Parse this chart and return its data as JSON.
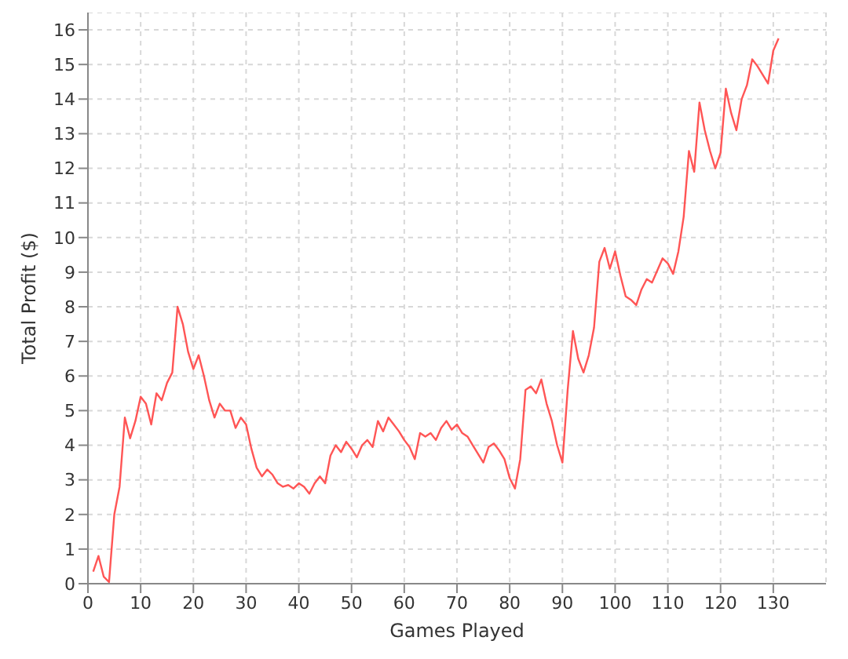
{
  "chart_data": {
    "type": "line",
    "xlabel": "Games Played",
    "ylabel": "Total Profit ($)",
    "xlim": [
      0,
      140
    ],
    "xticks": [
      0,
      10,
      20,
      30,
      40,
      50,
      60,
      70,
      80,
      90,
      100,
      110,
      120,
      130
    ],
    "ylim": [
      0,
      16.5
    ],
    "yticks": [
      0,
      1,
      2,
      3,
      4,
      5,
      6,
      7,
      8,
      9,
      10,
      11,
      12,
      13,
      14,
      15,
      16
    ],
    "grid": true,
    "legend": false,
    "marker": "none",
    "line_style": "solid",
    "x": [
      1,
      2,
      3,
      4,
      5,
      6,
      7,
      8,
      9,
      10,
      11,
      12,
      13,
      14,
      15,
      16,
      17,
      18,
      19,
      20,
      21,
      22,
      23,
      24,
      25,
      26,
      27,
      28,
      29,
      30,
      31,
      32,
      33,
      34,
      35,
      36,
      37,
      38,
      39,
      40,
      41,
      42,
      43,
      44,
      45,
      46,
      47,
      48,
      49,
      50,
      51,
      52,
      53,
      54,
      55,
      56,
      57,
      58,
      59,
      60,
      61,
      62,
      63,
      64,
      65,
      66,
      67,
      68,
      69,
      70,
      71,
      72,
      73,
      74,
      75,
      76,
      77,
      78,
      79,
      80,
      81,
      82,
      83,
      84,
      85,
      86,
      87,
      88,
      89,
      90,
      91,
      92,
      93,
      94,
      95,
      96,
      97,
      98,
      99,
      100,
      101,
      102,
      103,
      104,
      105,
      106,
      107,
      108,
      109,
      110,
      111,
      112,
      113,
      114,
      115,
      116,
      117,
      118,
      119,
      120,
      121,
      122,
      123,
      124,
      125,
      126,
      127,
      128,
      129,
      130,
      131
    ],
    "series": [
      {
        "color": "#ff5555",
        "values": [
          0.35,
          0.8,
          0.2,
          0.05,
          2.0,
          2.8,
          4.8,
          4.2,
          4.7,
          5.4,
          5.2,
          4.6,
          5.5,
          5.3,
          5.8,
          6.1,
          8.0,
          7.5,
          6.7,
          6.2,
          6.6,
          6.0,
          5.3,
          4.8,
          5.2,
          5.0,
          5.0,
          4.5,
          4.8,
          4.6,
          3.9,
          3.35,
          3.1,
          3.3,
          3.15,
          2.9,
          2.8,
          2.85,
          2.75,
          2.9,
          2.8,
          2.6,
          2.9,
          3.1,
          2.9,
          3.7,
          4.0,
          3.8,
          4.1,
          3.9,
          3.65,
          4.0,
          4.15,
          3.95,
          4.7,
          4.4,
          4.8,
          4.6,
          4.4,
          4.15,
          3.95,
          3.6,
          4.35,
          4.25,
          4.35,
          4.15,
          4.5,
          4.7,
          4.45,
          4.6,
          4.35,
          4.25,
          4.0,
          3.75,
          3.5,
          3.95,
          4.05,
          3.85,
          3.6,
          3.05,
          2.75,
          3.6,
          5.6,
          5.7,
          5.5,
          5.9,
          5.2,
          4.7,
          4.0,
          3.5,
          5.6,
          7.3,
          6.5,
          6.1,
          6.6,
          7.4,
          9.3,
          9.7,
          9.1,
          9.6,
          8.9,
          8.3,
          8.2,
          8.05,
          8.5,
          8.8,
          8.7,
          9.05,
          9.4,
          9.25,
          8.95,
          9.6,
          10.6,
          12.5,
          11.9,
          13.9,
          13.1,
          12.5,
          12.0,
          12.45,
          14.3,
          13.6,
          13.1,
          14.0,
          14.4,
          15.15,
          14.95,
          14.7,
          14.45,
          15.4,
          15.75
        ]
      }
    ]
  }
}
